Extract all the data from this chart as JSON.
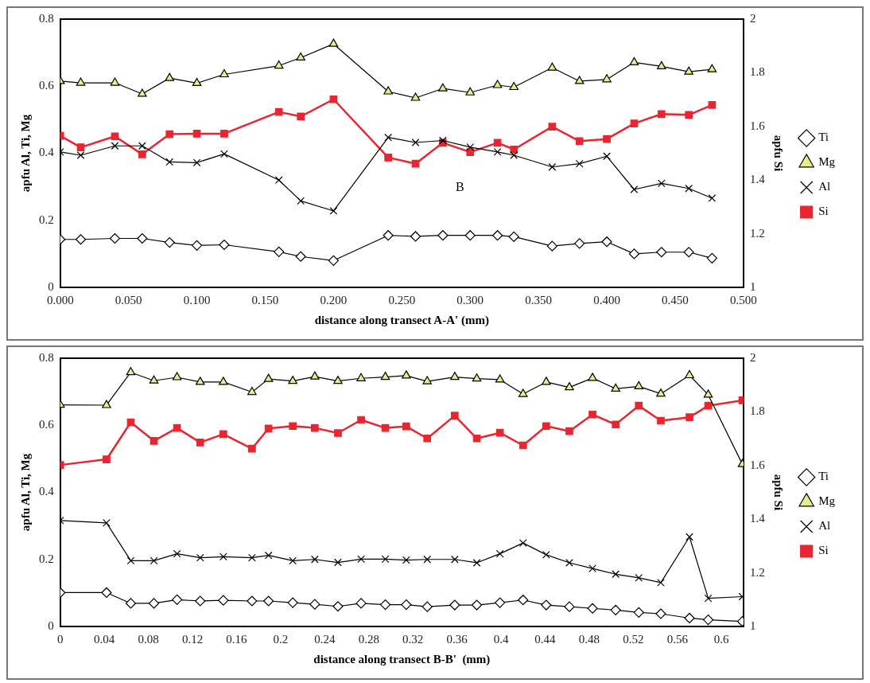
{
  "chart_data": [
    {
      "type": "line",
      "xlabel": "distance along transect A-A' (mm)",
      "ylabel": "apfu Al, Ti, Mg",
      "y2label": "apfu Si",
      "annotations": [
        "B"
      ],
      "x": [
        0,
        0.015,
        0.04,
        0.06,
        0.08,
        0.1,
        0.12,
        0.16,
        0.176,
        0.2,
        0.24,
        0.26,
        0.28,
        0.3,
        0.32,
        0.332,
        0.36,
        0.38,
        0.4,
        0.42,
        0.44,
        0.46,
        0.477
      ],
      "series": [
        {
          "name": "Ti",
          "color": "#000000",
          "marker": "diamond",
          "values": [
            0.143,
            0.143,
            0.146,
            0.146,
            0.134,
            0.125,
            0.127,
            0.106,
            0.092,
            0.08,
            0.155,
            0.152,
            0.155,
            0.155,
            0.155,
            0.151,
            0.123,
            0.131,
            0.136,
            0.1,
            0.105,
            0.105,
            0.087
          ]
        },
        {
          "name": "Mg",
          "color": "#e6ee8c",
          "marker": "triangle",
          "values": [
            0.615,
            0.61,
            0.61,
            0.577,
            0.624,
            0.609,
            0.635,
            0.661,
            0.685,
            0.726,
            0.584,
            0.565,
            0.593,
            0.581,
            0.603,
            0.597,
            0.655,
            0.615,
            0.62,
            0.671,
            0.659,
            0.643,
            0.65
          ]
        },
        {
          "name": "Al",
          "color": "#000000",
          "marker": "cross",
          "values": [
            0.404,
            0.394,
            0.422,
            0.422,
            0.374,
            0.372,
            0.398,
            0.32,
            0.258,
            0.228,
            0.447,
            0.432,
            0.438,
            0.418,
            0.404,
            0.394,
            0.359,
            0.369,
            0.391,
            0.292,
            0.31,
            0.295,
            0.266
          ]
        },
        {
          "name": "Si",
          "color": "#e8262f",
          "marker": "square",
          "axis": "y2",
          "values": [
            1.565,
            1.522,
            1.563,
            1.496,
            1.571,
            1.573,
            1.573,
            1.654,
            1.637,
            1.701,
            1.484,
            1.461,
            1.539,
            1.504,
            1.539,
            1.514,
            1.599,
            1.545,
            1.553,
            1.611,
            1.646,
            1.643,
            1.68
          ]
        }
      ],
      "xlim": [
        0,
        0.5
      ],
      "xticks": [
        {
          "value": 0,
          "label": "0.000"
        },
        {
          "value": 0.05,
          "label": "0.050"
        },
        {
          "value": 0.1,
          "label": "0.100"
        },
        {
          "value": 0.15,
          "label": "0.150"
        },
        {
          "value": 0.2,
          "label": "0.200"
        },
        {
          "value": 0.25,
          "label": "0.250"
        },
        {
          "value": 0.3,
          "label": "0.300"
        },
        {
          "value": 0.35,
          "label": "0.350"
        },
        {
          "value": 0.4,
          "label": "0.400"
        },
        {
          "value": 0.45,
          "label": "0.450"
        },
        {
          "value": 0.5,
          "label": "0.500"
        }
      ],
      "ylim": [
        0,
        0.8
      ],
      "yticks": [
        0,
        0.2,
        0.4,
        0.6,
        0.8
      ],
      "y2lim": [
        1,
        2
      ],
      "y2ticks": [
        1,
        1.2,
        1.4,
        1.6,
        1.8,
        2
      ],
      "grid": false,
      "legend": "right"
    },
    {
      "type": "line",
      "xlabel": "distance along transect B-B'  (mm)",
      "ylabel": "apfu Al, Ti, Mg",
      "y2label": "apfu Si",
      "x": [
        0,
        0.042,
        0.064,
        0.085,
        0.106,
        0.127,
        0.148,
        0.174,
        0.189,
        0.211,
        0.231,
        0.252,
        0.273,
        0.295,
        0.314,
        0.333,
        0.358,
        0.378,
        0.399,
        0.42,
        0.441,
        0.462,
        0.483,
        0.504,
        0.525,
        0.545,
        0.571,
        0.588,
        0.619
      ],
      "series": [
        {
          "name": "Ti",
          "color": "#000000",
          "marker": "diamond",
          "values": [
            0.101,
            0.101,
            0.069,
            0.069,
            0.08,
            0.076,
            0.078,
            0.076,
            0.076,
            0.071,
            0.066,
            0.06,
            0.069,
            0.065,
            0.065,
            0.059,
            0.064,
            0.064,
            0.071,
            0.079,
            0.064,
            0.059,
            0.054,
            0.049,
            0.042,
            0.038,
            0.025,
            0.02,
            0.015
          ]
        },
        {
          "name": "Mg",
          "color": "#e6ee8c",
          "marker": "triangle",
          "values": [
            0.661,
            0.66,
            0.758,
            0.733,
            0.743,
            0.729,
            0.729,
            0.699,
            0.738,
            0.732,
            0.745,
            0.732,
            0.74,
            0.744,
            0.748,
            0.731,
            0.744,
            0.739,
            0.736,
            0.693,
            0.729,
            0.713,
            0.741,
            0.709,
            0.716,
            0.694,
            0.749,
            0.691,
            0.484
          ]
        },
        {
          "name": "Al",
          "color": "#000000",
          "marker": "cross",
          "values": [
            0.316,
            0.309,
            0.196,
            0.196,
            0.217,
            0.205,
            0.208,
            0.205,
            0.212,
            0.196,
            0.2,
            0.191,
            0.201,
            0.201,
            0.198,
            0.2,
            0.2,
            0.19,
            0.217,
            0.249,
            0.214,
            0.19,
            0.173,
            0.156,
            0.145,
            0.131,
            0.267,
            0.084,
            0.089
          ]
        },
        {
          "name": "Si",
          "color": "#e8262f",
          "marker": "square",
          "axis": "y2",
          "values": [
            1.602,
            1.623,
            1.761,
            1.692,
            1.74,
            1.686,
            1.717,
            1.663,
            1.738,
            1.747,
            1.74,
            1.721,
            1.77,
            1.74,
            1.746,
            1.701,
            1.786,
            1.701,
            1.722,
            1.675,
            1.747,
            1.728,
            1.79,
            1.753,
            1.823,
            1.767,
            1.78,
            1.823,
            1.843
          ]
        }
      ],
      "xlim": [
        0,
        0.62
      ],
      "xticks": [
        0,
        0.04,
        0.08,
        0.12,
        0.16,
        0.2,
        0.24,
        0.28,
        0.32,
        0.36,
        0.4,
        0.44,
        0.48,
        0.52,
        0.56,
        0.6
      ],
      "ylim": [
        0,
        0.8
      ],
      "yticks": [
        0,
        0.2,
        0.4,
        0.6,
        0.8
      ],
      "y2lim": [
        1,
        2
      ],
      "y2ticks": [
        1,
        1.2,
        1.4,
        1.6,
        1.8,
        2
      ],
      "grid": false,
      "legend": "right"
    }
  ]
}
